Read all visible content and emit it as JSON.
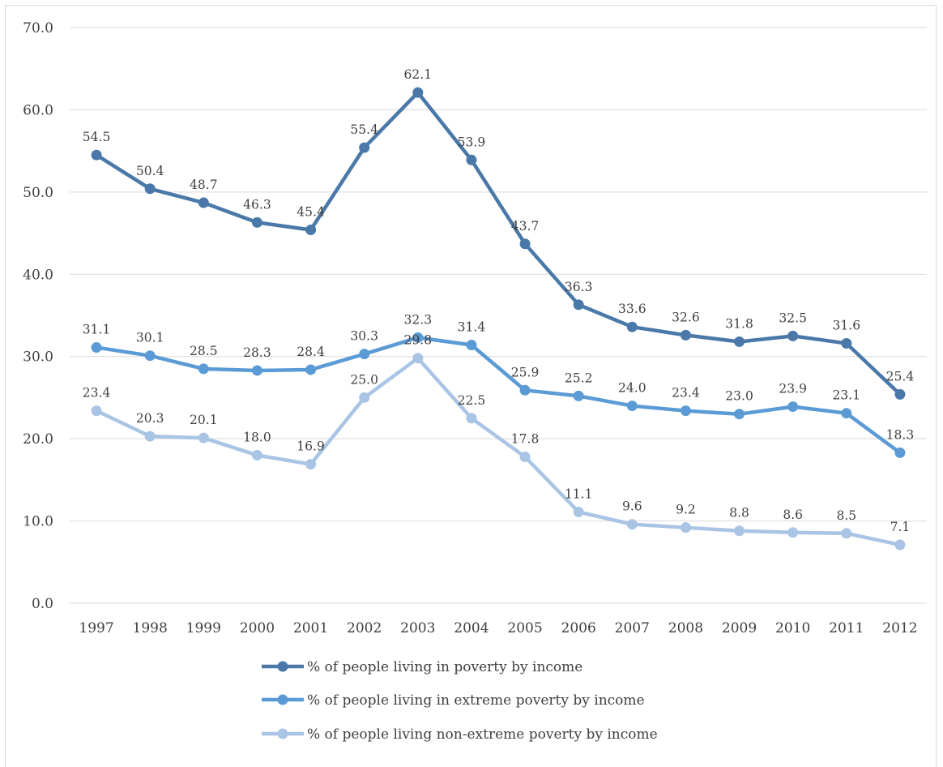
{
  "chart_data": {
    "type": "line",
    "title": "",
    "xlabel": "",
    "ylabel": "",
    "ylim": [
      0,
      70
    ],
    "y_ticks": [
      "0.0",
      "10.0",
      "20.0",
      "30.0",
      "40.0",
      "50.0",
      "60.0",
      "70.0"
    ],
    "grid": true,
    "legend_position": "bottom",
    "categories": [
      "1997",
      "1998",
      "1999",
      "2000",
      "2001",
      "2002",
      "2003",
      "2004",
      "2005",
      "2006",
      "2007",
      "2008",
      "2009",
      "2010",
      "2011",
      "2012"
    ],
    "series": [
      {
        "name": "% of people living in poverty by income",
        "color": "#4a78a8",
        "values": [
          54.5,
          50.4,
          48.7,
          46.3,
          45.4,
          55.4,
          62.1,
          53.9,
          43.7,
          36.3,
          33.6,
          32.6,
          31.8,
          32.5,
          31.6,
          25.4
        ],
        "labels": [
          "54.5",
          "50.4",
          "48.7",
          "46.3",
          "45.4",
          "55.4",
          "62.1",
          "53.9",
          "43.7",
          "36.3",
          "33.6",
          "32.6",
          "31.8",
          "32.5",
          "31.6",
          "25.4"
        ]
      },
      {
        "name": "% of people living in extreme poverty by income",
        "color": "#5b9bd5",
        "values": [
          31.1,
          30.1,
          28.5,
          28.3,
          28.4,
          30.3,
          32.3,
          31.4,
          25.9,
          25.2,
          24.0,
          23.4,
          23.0,
          23.9,
          23.1,
          18.3
        ],
        "labels": [
          "31.1",
          "30.1",
          "28.5",
          "28.3",
          "28.4",
          "30.3",
          "32.3",
          "31.4",
          "25.9",
          "25.2",
          "24.0",
          "23.4",
          "23.0",
          "23.9",
          "23.1",
          "18.3"
        ]
      },
      {
        "name": "% of people living non-extreme poverty by income",
        "color": "#a9c4e4",
        "values": [
          23.4,
          20.3,
          20.1,
          18.0,
          16.9,
          25.0,
          29.8,
          22.5,
          17.8,
          11.1,
          9.6,
          9.2,
          8.8,
          8.6,
          8.5,
          7.1
        ],
        "labels": [
          "23.4",
          "20.3",
          "20.1",
          "18.0",
          "16.9",
          "25.0",
          "29.8",
          "22.5",
          "17.8",
          "11.1",
          "9.6",
          "9.2",
          "8.8",
          "8.6",
          "8.5",
          "7.1"
        ]
      }
    ]
  }
}
